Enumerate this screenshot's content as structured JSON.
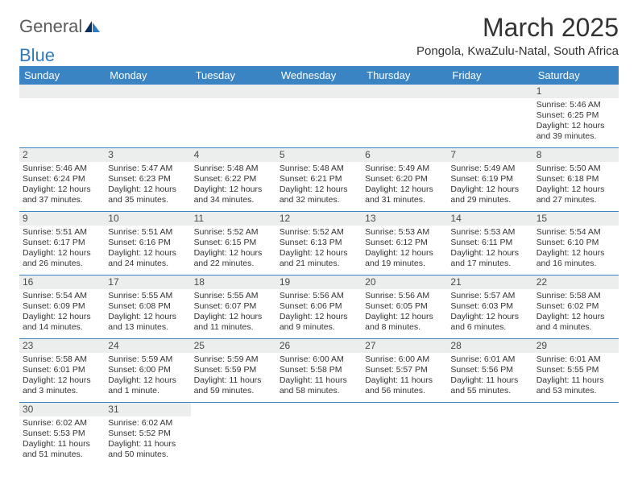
{
  "logo": {
    "general": "General",
    "blue": "Blue"
  },
  "title": "March 2025",
  "location": "Pongola, KwaZulu-Natal, South Africa",
  "colors": {
    "header_bg": "#3b84c4",
    "header_text": "#ffffff",
    "daynum_bg": "#eceded",
    "text": "#333333",
    "logo_gray": "#5a5a5a",
    "logo_blue": "#2f7bbf"
  },
  "daynames": [
    "Sunday",
    "Monday",
    "Tuesday",
    "Wednesday",
    "Thursday",
    "Friday",
    "Saturday"
  ],
  "weeks": [
    [
      {
        "blank": true
      },
      {
        "blank": true
      },
      {
        "blank": true
      },
      {
        "blank": true
      },
      {
        "blank": true
      },
      {
        "blank": true
      },
      {
        "n": "1",
        "sr": "Sunrise: 5:46 AM",
        "ss": "Sunset: 6:25 PM",
        "dl1": "Daylight: 12 hours",
        "dl2": "and 39 minutes."
      }
    ],
    [
      {
        "n": "2",
        "sr": "Sunrise: 5:46 AM",
        "ss": "Sunset: 6:24 PM",
        "dl1": "Daylight: 12 hours",
        "dl2": "and 37 minutes."
      },
      {
        "n": "3",
        "sr": "Sunrise: 5:47 AM",
        "ss": "Sunset: 6:23 PM",
        "dl1": "Daylight: 12 hours",
        "dl2": "and 35 minutes."
      },
      {
        "n": "4",
        "sr": "Sunrise: 5:48 AM",
        "ss": "Sunset: 6:22 PM",
        "dl1": "Daylight: 12 hours",
        "dl2": "and 34 minutes."
      },
      {
        "n": "5",
        "sr": "Sunrise: 5:48 AM",
        "ss": "Sunset: 6:21 PM",
        "dl1": "Daylight: 12 hours",
        "dl2": "and 32 minutes."
      },
      {
        "n": "6",
        "sr": "Sunrise: 5:49 AM",
        "ss": "Sunset: 6:20 PM",
        "dl1": "Daylight: 12 hours",
        "dl2": "and 31 minutes."
      },
      {
        "n": "7",
        "sr": "Sunrise: 5:49 AM",
        "ss": "Sunset: 6:19 PM",
        "dl1": "Daylight: 12 hours",
        "dl2": "and 29 minutes."
      },
      {
        "n": "8",
        "sr": "Sunrise: 5:50 AM",
        "ss": "Sunset: 6:18 PM",
        "dl1": "Daylight: 12 hours",
        "dl2": "and 27 minutes."
      }
    ],
    [
      {
        "n": "9",
        "sr": "Sunrise: 5:51 AM",
        "ss": "Sunset: 6:17 PM",
        "dl1": "Daylight: 12 hours",
        "dl2": "and 26 minutes."
      },
      {
        "n": "10",
        "sr": "Sunrise: 5:51 AM",
        "ss": "Sunset: 6:16 PM",
        "dl1": "Daylight: 12 hours",
        "dl2": "and 24 minutes."
      },
      {
        "n": "11",
        "sr": "Sunrise: 5:52 AM",
        "ss": "Sunset: 6:15 PM",
        "dl1": "Daylight: 12 hours",
        "dl2": "and 22 minutes."
      },
      {
        "n": "12",
        "sr": "Sunrise: 5:52 AM",
        "ss": "Sunset: 6:13 PM",
        "dl1": "Daylight: 12 hours",
        "dl2": "and 21 minutes."
      },
      {
        "n": "13",
        "sr": "Sunrise: 5:53 AM",
        "ss": "Sunset: 6:12 PM",
        "dl1": "Daylight: 12 hours",
        "dl2": "and 19 minutes."
      },
      {
        "n": "14",
        "sr": "Sunrise: 5:53 AM",
        "ss": "Sunset: 6:11 PM",
        "dl1": "Daylight: 12 hours",
        "dl2": "and 17 minutes."
      },
      {
        "n": "15",
        "sr": "Sunrise: 5:54 AM",
        "ss": "Sunset: 6:10 PM",
        "dl1": "Daylight: 12 hours",
        "dl2": "and 16 minutes."
      }
    ],
    [
      {
        "n": "16",
        "sr": "Sunrise: 5:54 AM",
        "ss": "Sunset: 6:09 PM",
        "dl1": "Daylight: 12 hours",
        "dl2": "and 14 minutes."
      },
      {
        "n": "17",
        "sr": "Sunrise: 5:55 AM",
        "ss": "Sunset: 6:08 PM",
        "dl1": "Daylight: 12 hours",
        "dl2": "and 13 minutes."
      },
      {
        "n": "18",
        "sr": "Sunrise: 5:55 AM",
        "ss": "Sunset: 6:07 PM",
        "dl1": "Daylight: 12 hours",
        "dl2": "and 11 minutes."
      },
      {
        "n": "19",
        "sr": "Sunrise: 5:56 AM",
        "ss": "Sunset: 6:06 PM",
        "dl1": "Daylight: 12 hours",
        "dl2": "and 9 minutes."
      },
      {
        "n": "20",
        "sr": "Sunrise: 5:56 AM",
        "ss": "Sunset: 6:05 PM",
        "dl1": "Daylight: 12 hours",
        "dl2": "and 8 minutes."
      },
      {
        "n": "21",
        "sr": "Sunrise: 5:57 AM",
        "ss": "Sunset: 6:03 PM",
        "dl1": "Daylight: 12 hours",
        "dl2": "and 6 minutes."
      },
      {
        "n": "22",
        "sr": "Sunrise: 5:58 AM",
        "ss": "Sunset: 6:02 PM",
        "dl1": "Daylight: 12 hours",
        "dl2": "and 4 minutes."
      }
    ],
    [
      {
        "n": "23",
        "sr": "Sunrise: 5:58 AM",
        "ss": "Sunset: 6:01 PM",
        "dl1": "Daylight: 12 hours",
        "dl2": "and 3 minutes."
      },
      {
        "n": "24",
        "sr": "Sunrise: 5:59 AM",
        "ss": "Sunset: 6:00 PM",
        "dl1": "Daylight: 12 hours",
        "dl2": "and 1 minute."
      },
      {
        "n": "25",
        "sr": "Sunrise: 5:59 AM",
        "ss": "Sunset: 5:59 PM",
        "dl1": "Daylight: 11 hours",
        "dl2": "and 59 minutes."
      },
      {
        "n": "26",
        "sr": "Sunrise: 6:00 AM",
        "ss": "Sunset: 5:58 PM",
        "dl1": "Daylight: 11 hours",
        "dl2": "and 58 minutes."
      },
      {
        "n": "27",
        "sr": "Sunrise: 6:00 AM",
        "ss": "Sunset: 5:57 PM",
        "dl1": "Daylight: 11 hours",
        "dl2": "and 56 minutes."
      },
      {
        "n": "28",
        "sr": "Sunrise: 6:01 AM",
        "ss": "Sunset: 5:56 PM",
        "dl1": "Daylight: 11 hours",
        "dl2": "and 55 minutes."
      },
      {
        "n": "29",
        "sr": "Sunrise: 6:01 AM",
        "ss": "Sunset: 5:55 PM",
        "dl1": "Daylight: 11 hours",
        "dl2": "and 53 minutes."
      }
    ],
    [
      {
        "n": "30",
        "sr": "Sunrise: 6:02 AM",
        "ss": "Sunset: 5:53 PM",
        "dl1": "Daylight: 11 hours",
        "dl2": "and 51 minutes."
      },
      {
        "n": "31",
        "sr": "Sunrise: 6:02 AM",
        "ss": "Sunset: 5:52 PM",
        "dl1": "Daylight: 11 hours",
        "dl2": "and 50 minutes."
      },
      {
        "blank": true
      },
      {
        "blank": true
      },
      {
        "blank": true
      },
      {
        "blank": true
      },
      {
        "blank": true
      }
    ]
  ]
}
